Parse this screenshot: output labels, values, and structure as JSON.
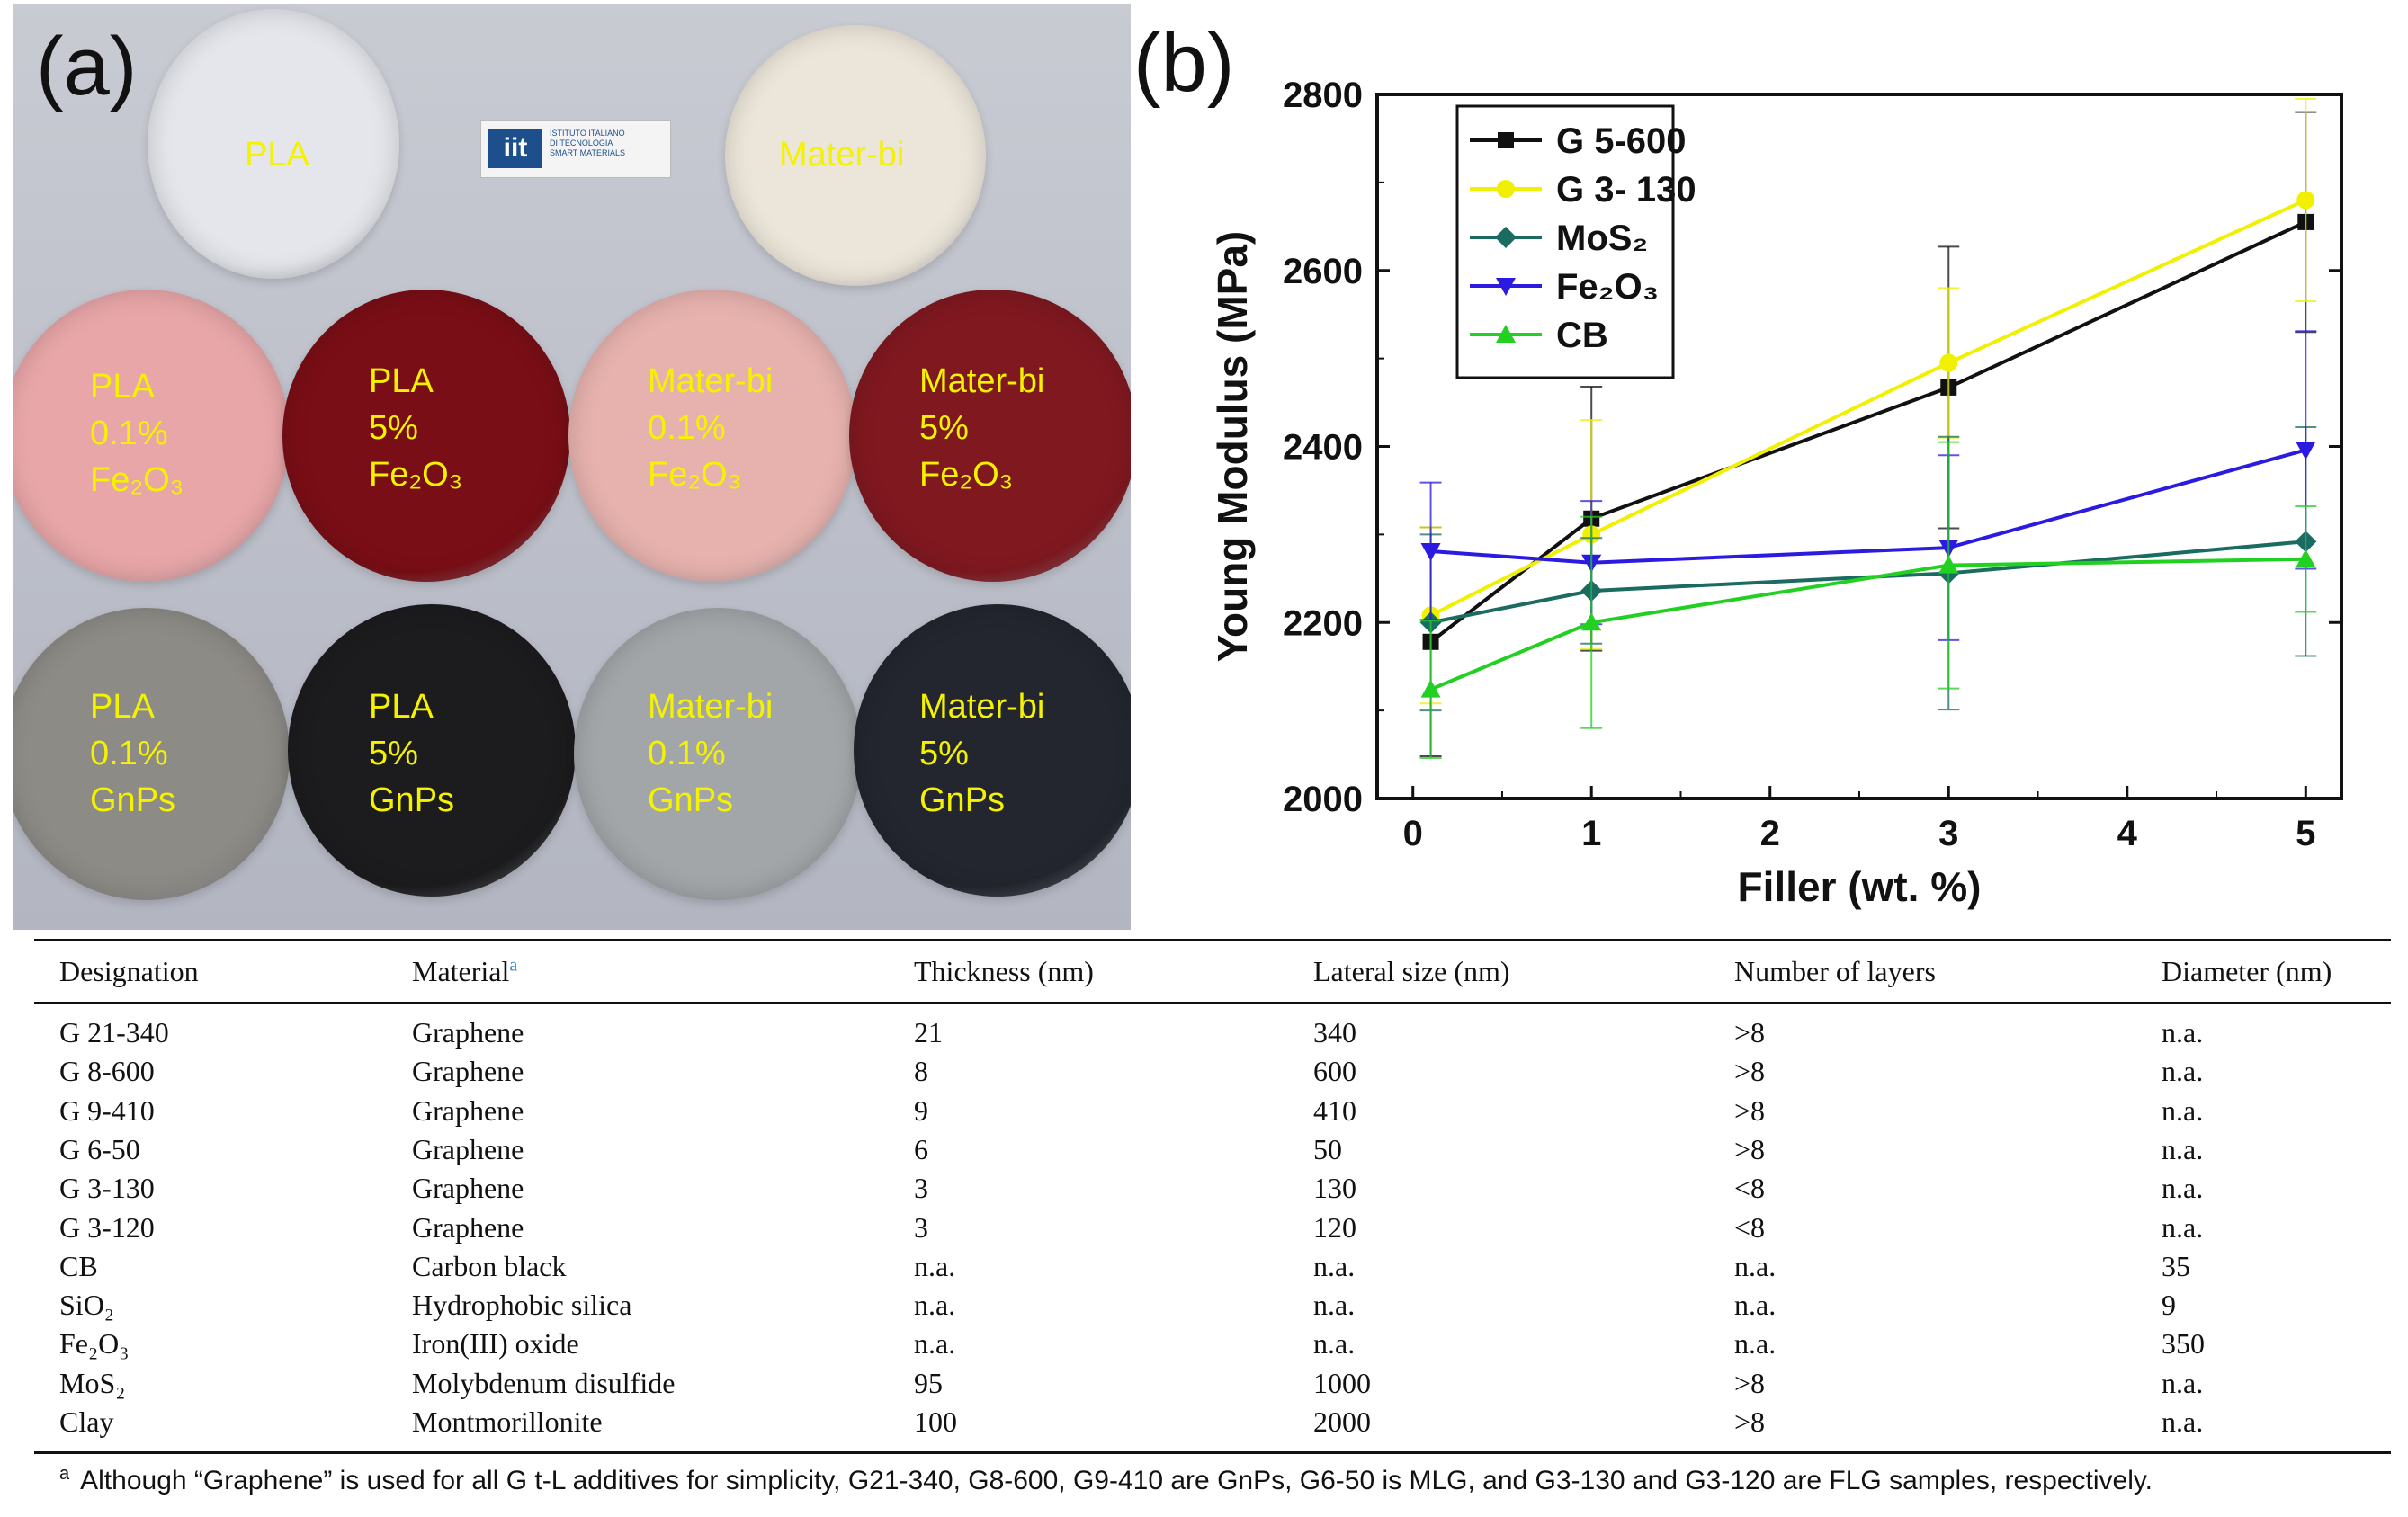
{
  "panel_a": {
    "label": "(a)",
    "logo": {
      "mark": "iit",
      "lines": [
        "ISTITUTO ITALIANO",
        "DI TECNOLOGIA",
        "SMART MATERIALS"
      ]
    },
    "discs": [
      {
        "lines": [
          "PLA"
        ],
        "color": "#e4e6ec"
      },
      {
        "lines": [
          "Mater-bi"
        ],
        "color": "#ece6da"
      },
      {
        "lines": [
          "PLA",
          "0.1%",
          "Fe₂O₃"
        ],
        "color": "#e8a6a8"
      },
      {
        "lines": [
          "PLA",
          "5%",
          "Fe₂O₃"
        ],
        "color": "#7a0e16"
      },
      {
        "lines": [
          "Mater-bi",
          "0.1%",
          "Fe₂O₃"
        ],
        "color": "#e7b2ae"
      },
      {
        "lines": [
          "Mater-bi",
          "5%",
          "Fe₂O₃"
        ],
        "color": "#801820"
      },
      {
        "lines": [
          "PLA",
          "0.1%",
          "GnPs"
        ],
        "color": "#8d8b86"
      },
      {
        "lines": [
          "PLA",
          "5%",
          "GnPs"
        ],
        "color": "#1c1c1e"
      },
      {
        "lines": [
          "Mater-bi",
          "0.1%",
          "GnPs"
        ],
        "color": "#a2a6a8"
      },
      {
        "lines": [
          "Mater-bi",
          "5%",
          "GnPs"
        ],
        "color": "#23262e"
      }
    ]
  },
  "panel_b": {
    "label": "(b)"
  },
  "chart_data": {
    "type": "line",
    "xlabel": "Filler (wt. %)",
    "ylabel": "Young Modulus (MPa)",
    "xlim": [
      -0.2,
      5.2
    ],
    "ylim": [
      2000,
      2800
    ],
    "xticks": [
      0,
      1,
      2,
      3,
      4,
      5
    ],
    "yticks": [
      2000,
      2200,
      2400,
      2600,
      2800
    ],
    "legend_position": "top-left",
    "series": [
      {
        "name": "G 5-600",
        "color": "#111111",
        "marker": "square",
        "x": [
          0.1,
          1,
          3,
          5
        ],
        "y": [
          2178,
          2318,
          2467,
          2655
        ],
        "err": [
          130,
          150,
          160,
          125
        ]
      },
      {
        "name": "G 3- 130",
        "color": "#f0f000",
        "marker": "circle",
        "x": [
          0.1,
          1,
          3,
          5
        ],
        "y": [
          2208,
          2300,
          2495,
          2680
        ],
        "err": [
          100,
          130,
          85,
          115
        ]
      },
      {
        "name": "MoS₂",
        "color": "#1a6b60",
        "marker": "diamond",
        "x": [
          0.1,
          1,
          3,
          5
        ],
        "y": [
          2200,
          2236,
          2256,
          2292
        ],
        "err": [
          100,
          60,
          155,
          130
        ]
      },
      {
        "name": "Fe₂O₃",
        "color": "#2b1ae0",
        "marker": "triangle-down",
        "x": [
          0.1,
          1,
          3,
          5
        ],
        "y": [
          2281,
          2268,
          2285,
          2396
        ],
        "err": [
          78,
          70,
          105,
          135
        ]
      },
      {
        "name": "CB",
        "color": "#22d022",
        "marker": "triangle-up",
        "x": [
          0.1,
          1,
          3,
          5
        ],
        "y": [
          2124,
          2200,
          2265,
          2272
        ],
        "err": [
          78,
          120,
          140,
          60
        ]
      }
    ]
  },
  "table": {
    "headers": [
      "Designation",
      "Material",
      "Thickness (nm)",
      "Lateral size (nm)",
      "Number of layers",
      "Diameter (nm)"
    ],
    "header_note": "a",
    "rows": [
      [
        "G 21-340",
        "Graphene",
        "21",
        "340",
        ">8",
        "n.a."
      ],
      [
        "G 8-600",
        "Graphene",
        "8",
        "600",
        ">8",
        "n.a."
      ],
      [
        "G 9-410",
        "Graphene",
        "9",
        "410",
        ">8",
        "n.a."
      ],
      [
        "G 6-50",
        "Graphene",
        "6",
        "50",
        ">8",
        "n.a."
      ],
      [
        "G 3-130",
        "Graphene",
        "3",
        "130",
        "<8",
        "n.a."
      ],
      [
        "G 3-120",
        "Graphene",
        "3",
        "120",
        "<8",
        "n.a."
      ],
      [
        "CB",
        "Carbon black",
        "n.a.",
        "n.a.",
        "n.a.",
        "35"
      ],
      [
        "SiO₂",
        "Hydrophobic silica",
        "n.a.",
        "n.a.",
        "n.a.",
        "9"
      ],
      [
        "Fe₂O₃",
        "Iron(III) oxide",
        "n.a.",
        "n.a.",
        "n.a.",
        "350"
      ],
      [
        "MoS₂",
        "Molybdenum disulfide",
        "95",
        "1000",
        ">8",
        "n.a."
      ],
      [
        "Clay",
        "Montmorillonite",
        "100",
        "2000",
        ">8",
        "n.a."
      ]
    ],
    "footnote_mark": "a",
    "footnote": "Although “Graphene” is used for all G t-L additives for simplicity, G21-340, G8-600, G9-410 are GnPs, G6-50 is MLG, and G3-130 and G3-120 are FLG samples, respectively."
  }
}
